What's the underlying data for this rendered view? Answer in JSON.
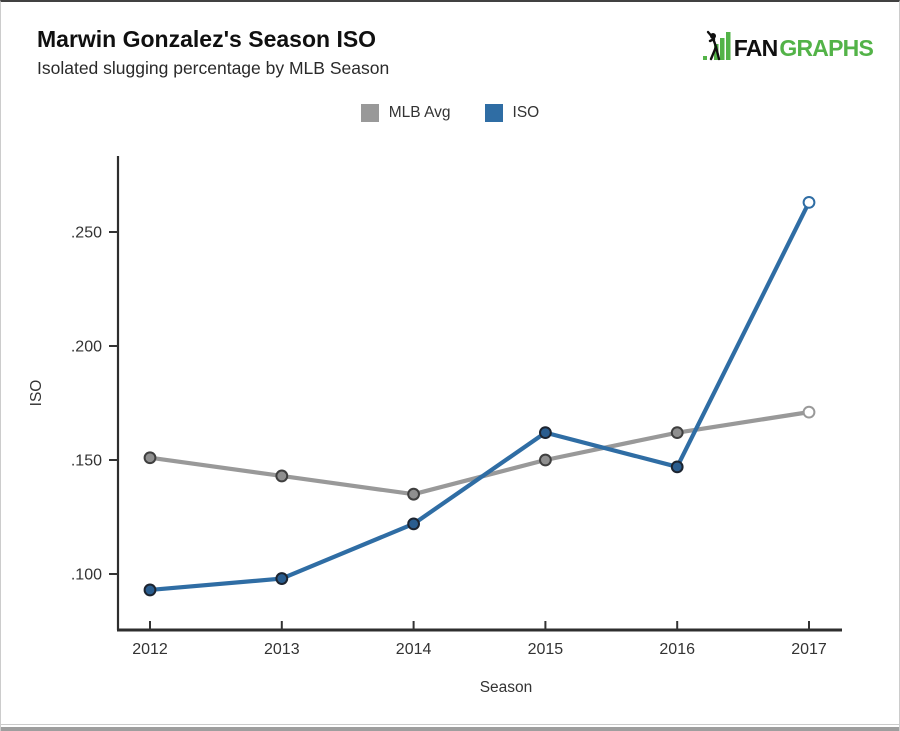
{
  "page": {
    "title": "Marwin Gonzalez's Season ISO",
    "subtitle": "Isolated slugging percentage by MLB Season"
  },
  "logo": {
    "text_black": "FAN",
    "text_green": "GRAPHS",
    "green": "#53b348",
    "black": "#101010"
  },
  "chart_data": {
    "type": "line",
    "title": "Marwin Gonzalez's Season ISO",
    "subtitle": "Isolated slugging percentage by MLB Season",
    "xlabel": "Season",
    "ylabel": "ISO",
    "categories": [
      "2012",
      "2013",
      "2014",
      "2015",
      "2016",
      "2017"
    ],
    "yticks": [
      0.1,
      0.15,
      0.2,
      0.25
    ],
    "ytick_labels": [
      ".100",
      ".150",
      ".200",
      ".250"
    ],
    "ylim": [
      0.076,
      0.283
    ],
    "grid": false,
    "legend_position": "top-center",
    "axis_color": "#2e2e2e",
    "tick_text_color": "#333333",
    "series": [
      {
        "name": "MLB Avg",
        "color": "#999999",
        "marker_fill": "#8f8f8f",
        "marker_stroke": "#3f3f3f",
        "values": [
          0.151,
          0.143,
          0.135,
          0.15,
          0.162,
          0.171
        ],
        "last_point_hollow": true
      },
      {
        "name": "ISO",
        "color": "#2f6da4",
        "marker_fill": "#2a5d8f",
        "marker_stroke": "#1c2430",
        "values": [
          0.093,
          0.098,
          0.122,
          0.162,
          0.147,
          0.263
        ],
        "last_point_hollow": true
      }
    ]
  }
}
